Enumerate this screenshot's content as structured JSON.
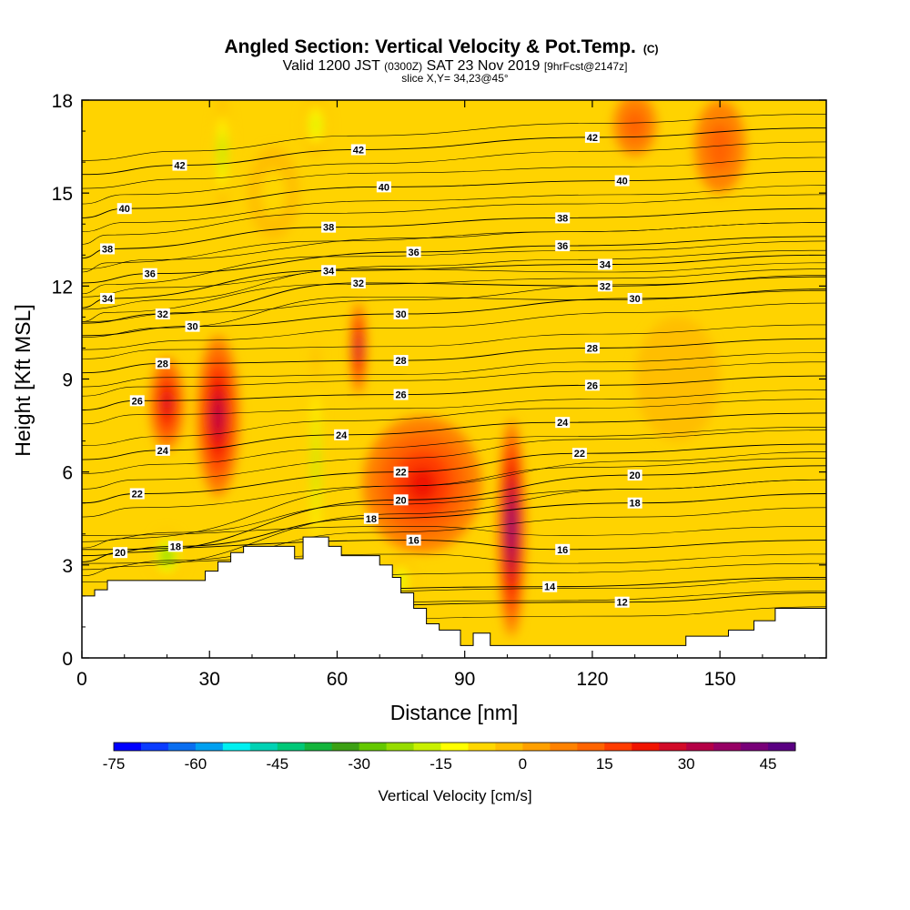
{
  "chart_data": {
    "type": "heatmap",
    "title": "Angled Section: Vertical Velocity & Pot.Temp.",
    "title_mark": "(C)",
    "subtitle": {
      "prefix": "Valid 1200 JST",
      "zone": "(0300Z)",
      "date": "SAT 23 Nov 2019",
      "forecast": "[9hrFcst@2147z]"
    },
    "slice_note": "slice X,Y= 34,23@45°",
    "xlabel": "Distance [nm]",
    "ylabel": "Height [Kft MSL]",
    "xlim": [
      0,
      175
    ],
    "ylim": [
      0,
      18
    ],
    "x_ticks": [
      0,
      30,
      60,
      90,
      120,
      150
    ],
    "y_ticks": [
      0,
      3,
      6,
      9,
      12,
      15,
      18
    ],
    "colorbar": {
      "label": "Vertical Velocity [cm/s]",
      "min": -75,
      "max": 50,
      "step": 5,
      "tick_values": [
        -75,
        -60,
        -45,
        -30,
        -15,
        0,
        15,
        30,
        45
      ],
      "colors": [
        "#0000ff",
        "#0a3cff",
        "#0a6ef0",
        "#00a0f0",
        "#00f0f0",
        "#00d2b4",
        "#00c878",
        "#14b43c",
        "#3ca014",
        "#64c800",
        "#96dc00",
        "#c8f000",
        "#ffff00",
        "#ffd700",
        "#ffbe00",
        "#ffa000",
        "#ff8200",
        "#ff6400",
        "#ff3c00",
        "#f01400",
        "#d20a28",
        "#b40046",
        "#960064",
        "#780078",
        "#5a0082"
      ]
    },
    "terrain": [
      [
        0,
        2
      ],
      [
        3,
        2
      ],
      [
        3,
        2.2
      ],
      [
        6,
        2.2
      ],
      [
        6,
        2.5
      ],
      [
        15,
        2.5
      ],
      [
        22,
        2.5
      ],
      [
        29,
        2.5
      ],
      [
        29,
        2.8
      ],
      [
        32,
        2.8
      ],
      [
        32,
        3.1
      ],
      [
        35,
        3.1
      ],
      [
        35,
        3.4
      ],
      [
        38,
        3.4
      ],
      [
        38,
        3.6
      ],
      [
        50,
        3.6
      ],
      [
        50,
        3.2
      ],
      [
        52,
        3.2
      ],
      [
        52,
        3.9
      ],
      [
        58,
        3.9
      ],
      [
        58,
        3.6
      ],
      [
        61,
        3.6
      ],
      [
        61,
        3.3
      ],
      [
        70,
        3.3
      ],
      [
        70,
        3.0
      ],
      [
        73,
        3.0
      ],
      [
        73,
        2.6
      ],
      [
        75,
        2.6
      ],
      [
        75,
        2.1
      ],
      [
        78,
        2.1
      ],
      [
        78,
        1.6
      ],
      [
        81,
        1.6
      ],
      [
        81,
        1.1
      ],
      [
        84,
        1.1
      ],
      [
        84,
        0.9
      ],
      [
        89,
        0.9
      ],
      [
        89,
        0.4
      ],
      [
        92,
        0.4
      ],
      [
        92,
        0.8
      ],
      [
        96,
        0.8
      ],
      [
        96,
        0.4
      ],
      [
        115,
        0.4
      ],
      [
        130,
        0.4
      ],
      [
        135,
        0.4
      ],
      [
        142,
        0.4
      ],
      [
        142,
        0.7
      ],
      [
        152,
        0.7
      ],
      [
        152,
        0.9
      ],
      [
        158,
        0.9
      ],
      [
        158,
        1.2
      ],
      [
        163,
        1.2
      ],
      [
        163,
        1.6
      ],
      [
        175,
        1.6
      ]
    ],
    "isentrope_labels": [
      {
        "value": "42",
        "x": 23,
        "y": 15.9
      },
      {
        "value": "42",
        "x": 65,
        "y": 16.4
      },
      {
        "value": "42",
        "x": 120,
        "y": 16.8
      },
      {
        "value": "40",
        "x": 10,
        "y": 14.5
      },
      {
        "value": "40",
        "x": 71,
        "y": 15.2
      },
      {
        "value": "40",
        "x": 127,
        "y": 15.4
      },
      {
        "value": "38",
        "x": 6,
        "y": 13.2
      },
      {
        "value": "38",
        "x": 58,
        "y": 13.9
      },
      {
        "value": "38",
        "x": 113,
        "y": 14.2
      },
      {
        "value": "36",
        "x": 16,
        "y": 12.4
      },
      {
        "value": "36",
        "x": 78,
        "y": 13.1
      },
      {
        "value": "36",
        "x": 113,
        "y": 13.3
      },
      {
        "value": "34",
        "x": 6,
        "y": 11.6
      },
      {
        "value": "34",
        "x": 58,
        "y": 12.5
      },
      {
        "value": "34",
        "x": 123,
        "y": 12.7
      },
      {
        "value": "32",
        "x": 19,
        "y": 11.1
      },
      {
        "value": "32",
        "x": 65,
        "y": 12.1
      },
      {
        "value": "32",
        "x": 123,
        "y": 12.0
      },
      {
        "value": "30",
        "x": 26,
        "y": 10.7
      },
      {
        "value": "30",
        "x": 75,
        "y": 11.1
      },
      {
        "value": "30",
        "x": 130,
        "y": 11.6
      },
      {
        "value": "28",
        "x": 19,
        "y": 9.5
      },
      {
        "value": "28",
        "x": 75,
        "y": 9.6
      },
      {
        "value": "28",
        "x": 120,
        "y": 10.0
      },
      {
        "value": "26",
        "x": 13,
        "y": 8.3
      },
      {
        "value": "26",
        "x": 75,
        "y": 8.5
      },
      {
        "value": "26",
        "x": 120,
        "y": 8.8
      },
      {
        "value": "24",
        "x": 19,
        "y": 6.7
      },
      {
        "value": "24",
        "x": 61,
        "y": 7.2
      },
      {
        "value": "24",
        "x": 113,
        "y": 7.6
      },
      {
        "value": "22",
        "x": 13,
        "y": 5.3
      },
      {
        "value": "22",
        "x": 75,
        "y": 6.0
      },
      {
        "value": "22",
        "x": 117,
        "y": 6.6
      },
      {
        "value": "20",
        "x": 9,
        "y": 3.4
      },
      {
        "value": "20",
        "x": 75,
        "y": 5.1
      },
      {
        "value": "20",
        "x": 130,
        "y": 5.9
      },
      {
        "value": "18",
        "x": 22,
        "y": 3.6
      },
      {
        "value": "18",
        "x": 68,
        "y": 4.5
      },
      {
        "value": "18",
        "x": 130,
        "y": 5.0
      },
      {
        "value": "16",
        "x": 78,
        "y": 3.8
      },
      {
        "value": "16",
        "x": 113,
        "y": 3.5
      },
      {
        "value": "14",
        "x": 110,
        "y": 2.3
      },
      {
        "value": "12",
        "x": 127,
        "y": 1.8
      }
    ],
    "velocity_features": [
      {
        "x": 32,
        "y": 7.8,
        "rx": 5,
        "ry": 2.6,
        "value": 30
      },
      {
        "x": 20,
        "y": 8.2,
        "rx": 4,
        "ry": 1.5,
        "value": 25
      },
      {
        "x": 65,
        "y": 10.0,
        "rx": 1.8,
        "ry": 1.5,
        "value": 30
      },
      {
        "x": 80,
        "y": 5.6,
        "rx": 14,
        "ry": 2.2,
        "value": 20
      },
      {
        "x": 101,
        "y": 4.2,
        "rx": 3.2,
        "ry": 3.5,
        "value": 40
      },
      {
        "x": 55,
        "y": 6.2,
        "rx": 1.5,
        "ry": 4,
        "value": -25
      },
      {
        "x": 33,
        "y": 16.3,
        "rx": 2,
        "ry": 1.8,
        "value": -25
      },
      {
        "x": 55,
        "y": 17.2,
        "rx": 3,
        "ry": 1,
        "value": -20
      },
      {
        "x": 20,
        "y": 3.3,
        "rx": 4,
        "ry": 0.8,
        "value": -30
      },
      {
        "x": 75,
        "y": 2.5,
        "rx": 3,
        "ry": 0.8,
        "value": -20
      },
      {
        "x": 150,
        "y": 16.5,
        "rx": 6,
        "ry": 1.5,
        "value": 10
      },
      {
        "x": 130,
        "y": 17.2,
        "rx": 5,
        "ry": 1,
        "value": 10
      },
      {
        "x": 45,
        "y": 15.0,
        "rx": 6,
        "ry": 1.5,
        "value": -10
      },
      {
        "x": 140,
        "y": 9.0,
        "rx": 10,
        "ry": 2,
        "value": -5
      }
    ]
  }
}
